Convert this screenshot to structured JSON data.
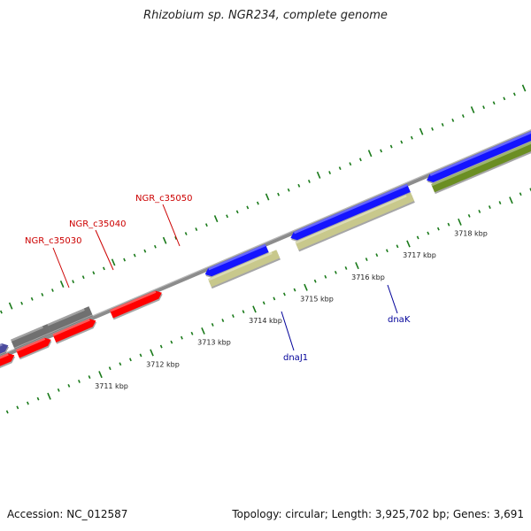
{
  "title": "Rhizobium sp. NGR234, complete genome",
  "footer": {
    "accession": "Accession: NC_012587",
    "stats": "Topology: circular; Length: 3,925,702 bp; Genes: 3,691"
  },
  "scale": {
    "ticks": [
      "3711 kbp",
      "3712 kbp",
      "3713 kbp",
      "3714 kbp",
      "3715 kbp",
      "3716 kbp",
      "3717 kbp",
      "3718 kbp"
    ]
  },
  "genes": [
    {
      "name": "NGR_c35030",
      "color": "#cc0000"
    },
    {
      "name": "NGR_c35040",
      "color": "#cc0000"
    },
    {
      "name": "NGR_c35050",
      "color": "#cc0000"
    },
    {
      "name": "dnaJ1",
      "color": "#000099"
    },
    {
      "name": "dnaK",
      "color": "#000099"
    }
  ],
  "colors": {
    "backbone": "#8c8c8c",
    "tick": "#1a7a1a",
    "red_cds": "#ff0000",
    "gray_cds": "#707070",
    "blue_cds": "#1414ff",
    "khaki_cds": "#c8c88c",
    "olive_cds": "#6b8e23",
    "navy_cds": "#4b4b9e"
  }
}
